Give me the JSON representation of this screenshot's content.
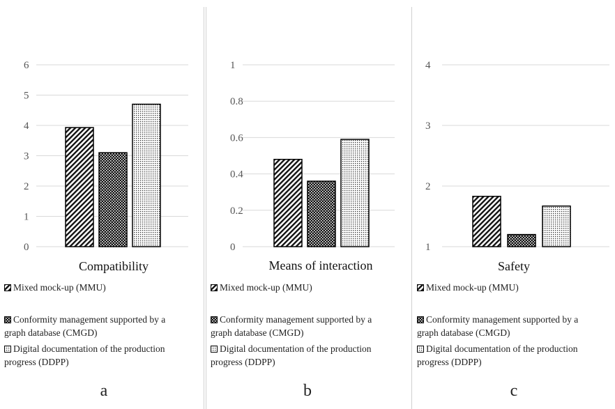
{
  "chart_data": [
    {
      "type": "bar",
      "title": "Compatibility",
      "ylim": [
        0,
        6
      ],
      "yticks": [
        0,
        1,
        2,
        3,
        4,
        5,
        6
      ],
      "ytick_labels": [
        "0",
        "1",
        "2",
        "3",
        "4",
        "5",
        "6"
      ],
      "grid": true,
      "legend_placement": "bottom",
      "series": [
        {
          "name": "Mixed mock-up (MMU)",
          "values": [
            3.93
          ]
        },
        {
          "name": "Conformity management supported by a graph database (CMGD)",
          "values": [
            3.1
          ]
        },
        {
          "name": "Digital documentation of the production progress (DDPP)",
          "values": [
            4.7
          ]
        }
      ]
    },
    {
      "type": "bar",
      "title": "Means of interaction",
      "ylim": [
        0,
        1
      ],
      "yticks": [
        0,
        0.2,
        0.4,
        0.6,
        0.8,
        1
      ],
      "ytick_labels": [
        "0",
        "0.2",
        "0.4",
        "0.6",
        "0.8",
        "1"
      ],
      "grid": true,
      "legend_placement": "bottom",
      "series": [
        {
          "name": "Mixed mock-up (MMU)",
          "values": [
            0.48
          ]
        },
        {
          "name": "Conformity management supported by a graph database (CMGD)",
          "values": [
            0.36
          ]
        },
        {
          "name": "Digital documentation of the production progress (DDPP)",
          "values": [
            0.59
          ]
        }
      ]
    },
    {
      "type": "bar",
      "title": "Safety",
      "ylim": [
        1,
        4
      ],
      "yticks": [
        1,
        2,
        3,
        4
      ],
      "ytick_labels": [
        "1",
        "2",
        "3",
        "4"
      ],
      "grid": true,
      "legend_placement": "bottom",
      "series": [
        {
          "name": "Mixed mock-up (MMU)",
          "values": [
            1.83
          ]
        },
        {
          "name": "Conformity management supported by a graph database (CMGD)",
          "values": [
            1.2
          ]
        },
        {
          "name": "Digital documentation of the production progress (DDPP)",
          "values": [
            1.67
          ]
        }
      ]
    }
  ],
  "legend_labels": {
    "mmu": "Mixed mock-up (MMU)",
    "cmgd_line1": "Conformity management supported by a",
    "cmgd_line2": "graph database (CMGD)",
    "ddpp_line1": "Digital documentation of the production",
    "ddpp_line2": "progress (DDPP)"
  },
  "panel_letters": [
    "a",
    "b",
    "c"
  ],
  "colors": {
    "grid": "#d9d9d9",
    "bar_stroke": "#000000",
    "text": "#222222"
  }
}
